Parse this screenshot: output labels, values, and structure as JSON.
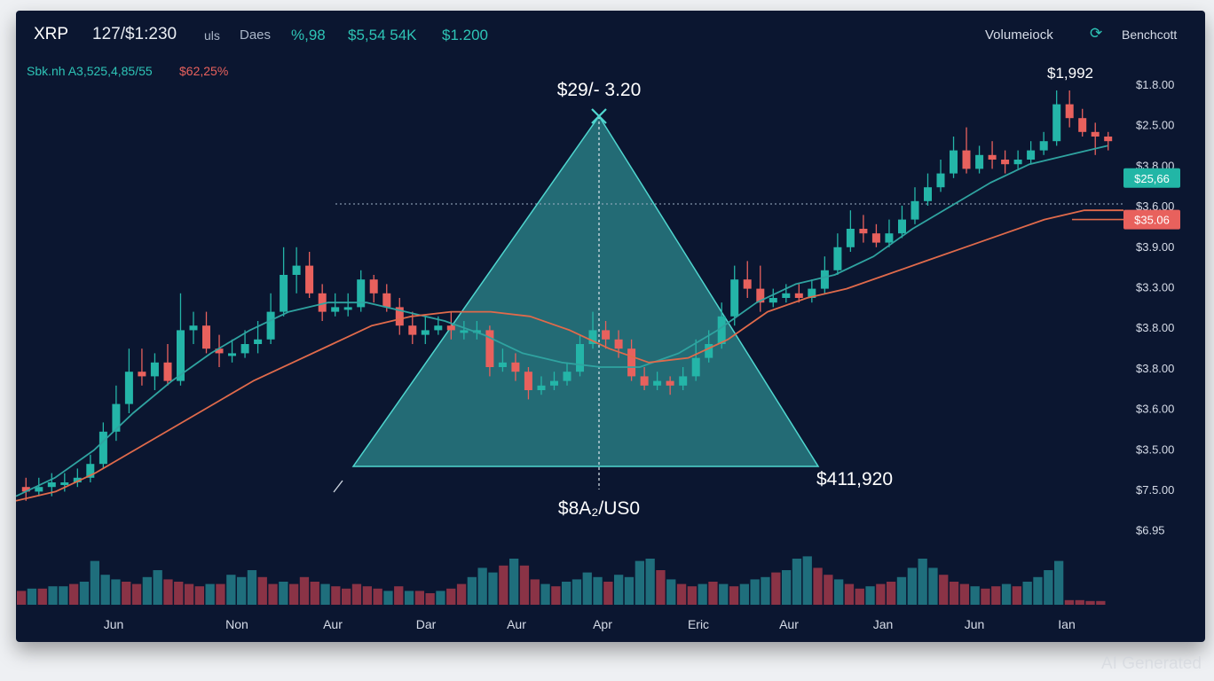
{
  "header": {
    "symbol": "XRP",
    "pair": "127/$1:230",
    "unit": "uls",
    "range": "Daes",
    "change": "%,98",
    "stat1": "$5,54 54K",
    "stat2": "$1.200",
    "volume_label": "Volumeiock",
    "bench_label": "Benchcott",
    "info": "Sbk.nh A3,525,4,85/55",
    "info_change": "$62,25%"
  },
  "watermark": "AI Generated",
  "colors": {
    "background": "#0b1630",
    "up": "#24b5a8",
    "down": "#e8615d",
    "ma_fast": "#2fa3a0",
    "ma_slow": "#e06a4b",
    "triangle": "#39b3b0"
  },
  "icons": {
    "bench": "refresh-icon"
  },
  "chart_data": {
    "type": "candlestick",
    "title": "",
    "x_ticks": [
      "Jun",
      "Non",
      "Aur",
      "Dar",
      "Aur",
      "Apr",
      "Eric",
      "Aur",
      "Jan",
      "Jun",
      "Ian"
    ],
    "y_ticks": [
      "$1.8.00",
      "$2.5.00",
      "$3.8.00",
      "$3.6.00",
      "$3.9.00",
      "$3.3.00",
      "$3.8.00",
      "$3.8.00",
      "$3.6.00",
      "$3.5.00",
      "$7.5.00",
      "$6.95"
    ],
    "price_tags": [
      {
        "label": "$25,66",
        "level": 0.81,
        "color": "#22b6a6"
      },
      {
        "label": "$35.06",
        "level": 0.72,
        "color": "#e8615d"
      }
    ],
    "annotations": {
      "apex": "$29/- 3.20",
      "bottom": "$8A₂/US0",
      "right": "$411,920",
      "top_right": "$1,992"
    },
    "candles": [
      {
        "o": 0.14,
        "c": 0.13,
        "h": 0.16,
        "l": 0.11
      },
      {
        "o": 0.13,
        "c": 0.14,
        "h": 0.16,
        "l": 0.12
      },
      {
        "o": 0.14,
        "c": 0.15,
        "h": 0.17,
        "l": 0.12
      },
      {
        "o": 0.15,
        "c": 0.15,
        "h": 0.17,
        "l": 0.13
      },
      {
        "o": 0.15,
        "c": 0.16,
        "h": 0.18,
        "l": 0.14
      },
      {
        "o": 0.16,
        "c": 0.19,
        "h": 0.21,
        "l": 0.15
      },
      {
        "o": 0.19,
        "c": 0.26,
        "h": 0.28,
        "l": 0.18
      },
      {
        "o": 0.26,
        "c": 0.32,
        "h": 0.36,
        "l": 0.24
      },
      {
        "o": 0.32,
        "c": 0.39,
        "h": 0.44,
        "l": 0.3
      },
      {
        "o": 0.39,
        "c": 0.38,
        "h": 0.44,
        "l": 0.36
      },
      {
        "o": 0.38,
        "c": 0.41,
        "h": 0.43,
        "l": 0.35
      },
      {
        "o": 0.41,
        "c": 0.37,
        "h": 0.45,
        "l": 0.36
      },
      {
        "o": 0.37,
        "c": 0.48,
        "h": 0.56,
        "l": 0.36
      },
      {
        "o": 0.48,
        "c": 0.49,
        "h": 0.52,
        "l": 0.45
      },
      {
        "o": 0.49,
        "c": 0.44,
        "h": 0.52,
        "l": 0.43
      },
      {
        "o": 0.44,
        "c": 0.43,
        "h": 0.47,
        "l": 0.4
      },
      {
        "o": 0.43,
        "c": 0.43,
        "h": 0.46,
        "l": 0.41
      },
      {
        "o": 0.43,
        "c": 0.45,
        "h": 0.48,
        "l": 0.42
      },
      {
        "o": 0.45,
        "c": 0.46,
        "h": 0.5,
        "l": 0.43
      },
      {
        "o": 0.46,
        "c": 0.52,
        "h": 0.56,
        "l": 0.45
      },
      {
        "o": 0.52,
        "c": 0.6,
        "h": 0.66,
        "l": 0.51
      },
      {
        "o": 0.6,
        "c": 0.62,
        "h": 0.66,
        "l": 0.56
      },
      {
        "o": 0.62,
        "c": 0.56,
        "h": 0.65,
        "l": 0.55
      },
      {
        "o": 0.56,
        "c": 0.52,
        "h": 0.58,
        "l": 0.5
      },
      {
        "o": 0.52,
        "c": 0.53,
        "h": 0.56,
        "l": 0.51
      },
      {
        "o": 0.53,
        "c": 0.53,
        "h": 0.56,
        "l": 0.51
      },
      {
        "o": 0.53,
        "c": 0.59,
        "h": 0.61,
        "l": 0.52
      },
      {
        "o": 0.59,
        "c": 0.56,
        "h": 0.6,
        "l": 0.54
      },
      {
        "o": 0.56,
        "c": 0.53,
        "h": 0.58,
        "l": 0.52
      },
      {
        "o": 0.53,
        "c": 0.49,
        "h": 0.55,
        "l": 0.47
      },
      {
        "o": 0.49,
        "c": 0.47,
        "h": 0.52,
        "l": 0.45
      },
      {
        "o": 0.47,
        "c": 0.48,
        "h": 0.51,
        "l": 0.45
      },
      {
        "o": 0.48,
        "c": 0.49,
        "h": 0.51,
        "l": 0.47
      },
      {
        "o": 0.49,
        "c": 0.48,
        "h": 0.52,
        "l": 0.46
      },
      {
        "o": 0.48,
        "c": 0.48,
        "h": 0.5,
        "l": 0.46
      },
      {
        "o": 0.48,
        "c": 0.48,
        "h": 0.5,
        "l": 0.46
      },
      {
        "o": 0.48,
        "c": 0.4,
        "h": 0.49,
        "l": 0.38
      },
      {
        "o": 0.4,
        "c": 0.41,
        "h": 0.44,
        "l": 0.39
      },
      {
        "o": 0.41,
        "c": 0.39,
        "h": 0.43,
        "l": 0.37
      },
      {
        "o": 0.39,
        "c": 0.35,
        "h": 0.4,
        "l": 0.33
      },
      {
        "o": 0.35,
        "c": 0.36,
        "h": 0.38,
        "l": 0.34
      },
      {
        "o": 0.36,
        "c": 0.37,
        "h": 0.39,
        "l": 0.35
      },
      {
        "o": 0.37,
        "c": 0.39,
        "h": 0.41,
        "l": 0.36
      },
      {
        "o": 0.39,
        "c": 0.45,
        "h": 0.47,
        "l": 0.38
      },
      {
        "o": 0.45,
        "c": 0.48,
        "h": 0.52,
        "l": 0.44
      },
      {
        "o": 0.48,
        "c": 0.46,
        "h": 0.5,
        "l": 0.44
      },
      {
        "o": 0.46,
        "c": 0.44,
        "h": 0.48,
        "l": 0.42
      },
      {
        "o": 0.44,
        "c": 0.38,
        "h": 0.46,
        "l": 0.37
      },
      {
        "o": 0.38,
        "c": 0.36,
        "h": 0.4,
        "l": 0.35
      },
      {
        "o": 0.36,
        "c": 0.37,
        "h": 0.39,
        "l": 0.35
      },
      {
        "o": 0.37,
        "c": 0.36,
        "h": 0.38,
        "l": 0.34
      },
      {
        "o": 0.36,
        "c": 0.38,
        "h": 0.4,
        "l": 0.35
      },
      {
        "o": 0.38,
        "c": 0.42,
        "h": 0.46,
        "l": 0.37
      },
      {
        "o": 0.42,
        "c": 0.45,
        "h": 0.48,
        "l": 0.41
      },
      {
        "o": 0.45,
        "c": 0.51,
        "h": 0.54,
        "l": 0.44
      },
      {
        "o": 0.51,
        "c": 0.59,
        "h": 0.62,
        "l": 0.49
      },
      {
        "o": 0.59,
        "c": 0.57,
        "h": 0.63,
        "l": 0.55
      },
      {
        "o": 0.57,
        "c": 0.54,
        "h": 0.62,
        "l": 0.52
      },
      {
        "o": 0.54,
        "c": 0.55,
        "h": 0.57,
        "l": 0.53
      },
      {
        "o": 0.55,
        "c": 0.56,
        "h": 0.58,
        "l": 0.54
      },
      {
        "o": 0.56,
        "c": 0.55,
        "h": 0.58,
        "l": 0.54
      },
      {
        "o": 0.55,
        "c": 0.57,
        "h": 0.59,
        "l": 0.54
      },
      {
        "o": 0.57,
        "c": 0.61,
        "h": 0.64,
        "l": 0.56
      },
      {
        "o": 0.61,
        "c": 0.66,
        "h": 0.69,
        "l": 0.6
      },
      {
        "o": 0.66,
        "c": 0.7,
        "h": 0.74,
        "l": 0.65
      },
      {
        "o": 0.7,
        "c": 0.69,
        "h": 0.73,
        "l": 0.67
      },
      {
        "o": 0.69,
        "c": 0.67,
        "h": 0.71,
        "l": 0.66
      },
      {
        "o": 0.67,
        "c": 0.69,
        "h": 0.72,
        "l": 0.66
      },
      {
        "o": 0.69,
        "c": 0.72,
        "h": 0.75,
        "l": 0.68
      },
      {
        "o": 0.72,
        "c": 0.76,
        "h": 0.79,
        "l": 0.71
      },
      {
        "o": 0.76,
        "c": 0.79,
        "h": 0.82,
        "l": 0.75
      },
      {
        "o": 0.79,
        "c": 0.82,
        "h": 0.85,
        "l": 0.78
      },
      {
        "o": 0.82,
        "c": 0.87,
        "h": 0.9,
        "l": 0.81
      },
      {
        "o": 0.87,
        "c": 0.83,
        "h": 0.92,
        "l": 0.82
      },
      {
        "o": 0.83,
        "c": 0.86,
        "h": 0.88,
        "l": 0.82
      },
      {
        "o": 0.86,
        "c": 0.85,
        "h": 0.89,
        "l": 0.83
      },
      {
        "o": 0.85,
        "c": 0.84,
        "h": 0.87,
        "l": 0.82
      },
      {
        "o": 0.84,
        "c": 0.85,
        "h": 0.87,
        "l": 0.83
      },
      {
        "o": 0.85,
        "c": 0.87,
        "h": 0.89,
        "l": 0.84
      },
      {
        "o": 0.87,
        "c": 0.89,
        "h": 0.91,
        "l": 0.86
      },
      {
        "o": 0.89,
        "c": 0.97,
        "h": 1.0,
        "l": 0.88
      },
      {
        "o": 0.97,
        "c": 0.94,
        "h": 1.0,
        "l": 0.92
      },
      {
        "o": 0.94,
        "c": 0.91,
        "h": 0.96,
        "l": 0.9
      },
      {
        "o": 0.91,
        "c": 0.9,
        "h": 0.93,
        "l": 0.86
      },
      {
        "o": 0.9,
        "c": 0.89,
        "h": 0.91,
        "l": 0.87
      }
    ],
    "ma_fast": [
      0.12,
      0.16,
      0.22,
      0.3,
      0.37,
      0.43,
      0.48,
      0.52,
      0.54,
      0.54,
      0.52,
      0.5,
      0.47,
      0.43,
      0.41,
      0.4,
      0.4,
      0.43,
      0.48,
      0.54,
      0.58,
      0.6,
      0.64,
      0.7,
      0.75,
      0.8,
      0.84,
      0.86,
      0.88
    ],
    "ma_slow": [
      0.11,
      0.13,
      0.17,
      0.22,
      0.27,
      0.32,
      0.37,
      0.41,
      0.45,
      0.49,
      0.51,
      0.52,
      0.52,
      0.51,
      0.48,
      0.44,
      0.41,
      0.42,
      0.46,
      0.52,
      0.55,
      0.57,
      0.6,
      0.63,
      0.66,
      0.69,
      0.72,
      0.74,
      0.74
    ],
    "volume": [
      0.3,
      0.35,
      0.35,
      0.4,
      0.4,
      0.45,
      0.5,
      0.95,
      0.65,
      0.55,
      0.5,
      0.45,
      0.6,
      0.75,
      0.55,
      0.5,
      0.45,
      0.4,
      0.45,
      0.45,
      0.65,
      0.6,
      0.75,
      0.6,
      0.45,
      0.5,
      0.45,
      0.6,
      0.5,
      0.45,
      0.4,
      0.35,
      0.45,
      0.4,
      0.35,
      0.3,
      0.4,
      0.3,
      0.3,
      0.25,
      0.3,
      0.35,
      0.45,
      0.6,
      0.8,
      0.7,
      0.85,
      1.0,
      0.85,
      0.55,
      0.45,
      0.4,
      0.5,
      0.55,
      0.7,
      0.6,
      0.5,
      0.65,
      0.6,
      0.95,
      1.0,
      0.75,
      0.55,
      0.45,
      0.4,
      0.45,
      0.5,
      0.45,
      0.4,
      0.45,
      0.55,
      0.6,
      0.7,
      0.75,
      1.0,
      1.05,
      0.8,
      0.65,
      0.55,
      0.45,
      0.35,
      0.4,
      0.45,
      0.5,
      0.6,
      0.8,
      1.0,
      0.8,
      0.65,
      0.5,
      0.45,
      0.4,
      0.35,
      0.4,
      0.45,
      0.4,
      0.5,
      0.6,
      0.75,
      0.95,
      0.1,
      0.1,
      0.08,
      0.08
    ],
    "volume_up": [
      false,
      true,
      false,
      true,
      true,
      false,
      true,
      true,
      true,
      true,
      false,
      false,
      true,
      true,
      false,
      false,
      false,
      false,
      true,
      false,
      true,
      true,
      true,
      false,
      false,
      true,
      false,
      false,
      false,
      true,
      false,
      false,
      false,
      false,
      false,
      true,
      false,
      true,
      false,
      false,
      true,
      false,
      false,
      true,
      true,
      true,
      false,
      true,
      false,
      false,
      true,
      false,
      true,
      true,
      true,
      true,
      false,
      true,
      true,
      true,
      true,
      false,
      true,
      false,
      false,
      true,
      false,
      true,
      false,
      true,
      true,
      true,
      false,
      true,
      true,
      true,
      false,
      false,
      true,
      false,
      false,
      true,
      false,
      false,
      true,
      true,
      true,
      true,
      false,
      false,
      false,
      true,
      false,
      false,
      true,
      false,
      true,
      true,
      true,
      true,
      false,
      false,
      false,
      false
    ]
  }
}
